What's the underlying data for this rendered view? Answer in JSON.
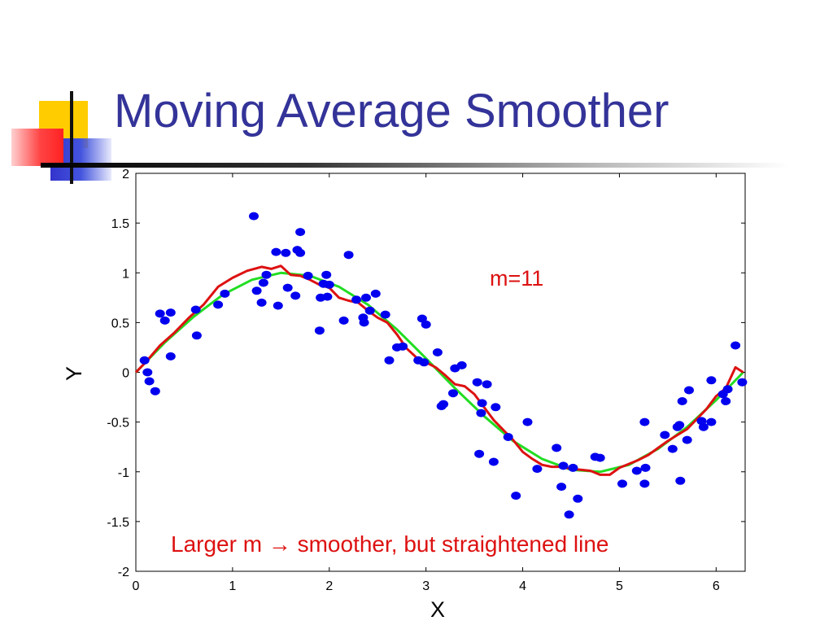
{
  "slide": {
    "title": "Moving Average Smoother"
  },
  "colors": {
    "title": "#333399",
    "points": "#0000ee",
    "true_curve": "#22dd22",
    "smoothed_curve": "#dd1111",
    "annotation": "#dd1111"
  },
  "chart_data": {
    "type": "scatter",
    "xlabel": "X",
    "ylabel": "Y",
    "xlim": [
      0,
      6.3
    ],
    "ylim": [
      -2,
      2
    ],
    "xticks": [
      0,
      1,
      2,
      3,
      4,
      5,
      6
    ],
    "yticks": [
      -2,
      -1.5,
      -1,
      -0.5,
      0,
      0.5,
      1,
      1.5,
      2
    ],
    "xtick_labels": [
      "0",
      "1",
      "2",
      "3",
      "4",
      "5",
      "6"
    ],
    "ytick_labels": [
      "-2",
      "-1.5",
      "-1",
      "-0.5",
      "0",
      "0.5",
      "1",
      "1.5",
      "2"
    ],
    "grid": false,
    "annotations": {
      "m_label": "m=11",
      "note": "Larger m → smoother, but straightened line"
    },
    "points": [
      [
        0.09,
        0.12
      ],
      [
        0.12,
        0.0
      ],
      [
        0.14,
        -0.09
      ],
      [
        0.2,
        -0.19
      ],
      [
        0.25,
        0.59
      ],
      [
        0.3,
        0.52
      ],
      [
        0.36,
        0.6
      ],
      [
        0.36,
        0.16
      ],
      [
        0.62,
        0.63
      ],
      [
        0.63,
        0.37
      ],
      [
        0.85,
        0.68
      ],
      [
        0.92,
        0.79
      ],
      [
        1.22,
        1.57
      ],
      [
        1.25,
        0.82
      ],
      [
        1.3,
        0.7
      ],
      [
        1.32,
        0.9
      ],
      [
        1.35,
        0.98
      ],
      [
        1.45,
        1.21
      ],
      [
        1.47,
        0.67
      ],
      [
        1.55,
        1.2
      ],
      [
        1.57,
        0.85
      ],
      [
        1.65,
        0.77
      ],
      [
        1.67,
        1.23
      ],
      [
        1.7,
        1.2
      ],
      [
        1.7,
        1.41
      ],
      [
        1.78,
        0.97
      ],
      [
        1.9,
        0.42
      ],
      [
        1.91,
        0.75
      ],
      [
        1.94,
        0.89
      ],
      [
        1.97,
        0.98
      ],
      [
        1.98,
        0.76
      ],
      [
        2.0,
        0.88
      ],
      [
        2.15,
        0.52
      ],
      [
        2.2,
        1.18
      ],
      [
        2.28,
        0.73
      ],
      [
        2.35,
        0.55
      ],
      [
        2.36,
        0.5
      ],
      [
        2.38,
        0.75
      ],
      [
        2.42,
        0.62
      ],
      [
        2.48,
        0.79
      ],
      [
        2.58,
        0.58
      ],
      [
        2.62,
        0.12
      ],
      [
        2.7,
        0.25
      ],
      [
        2.76,
        0.26
      ],
      [
        2.92,
        0.12
      ],
      [
        2.96,
        0.54
      ],
      [
        2.98,
        0.1
      ],
      [
        3.0,
        0.48
      ],
      [
        3.12,
        0.2
      ],
      [
        3.16,
        -0.34
      ],
      [
        3.18,
        -0.32
      ],
      [
        3.28,
        -0.21
      ],
      [
        3.3,
        0.04
      ],
      [
        3.37,
        0.07
      ],
      [
        3.53,
        -0.1
      ],
      [
        3.55,
        -0.82
      ],
      [
        3.57,
        -0.41
      ],
      [
        3.58,
        -0.31
      ],
      [
        3.63,
        -0.12
      ],
      [
        3.7,
        -0.9
      ],
      [
        3.72,
        -0.35
      ],
      [
        3.85,
        -0.65
      ],
      [
        3.93,
        -1.24
      ],
      [
        4.05,
        -0.5
      ],
      [
        4.15,
        -0.97
      ],
      [
        4.35,
        -0.76
      ],
      [
        4.4,
        -1.15
      ],
      [
        4.42,
        -0.94
      ],
      [
        4.48,
        -1.43
      ],
      [
        4.52,
        -0.96
      ],
      [
        4.57,
        -1.27
      ],
      [
        4.75,
        -0.85
      ],
      [
        4.8,
        -0.86
      ],
      [
        5.03,
        -1.12
      ],
      [
        5.18,
        -0.99
      ],
      [
        5.26,
        -1.12
      ],
      [
        5.26,
        -0.5
      ],
      [
        5.27,
        -0.96
      ],
      [
        5.47,
        -0.63
      ],
      [
        5.55,
        -0.77
      ],
      [
        5.6,
        -0.55
      ],
      [
        5.62,
        -0.53
      ],
      [
        5.63,
        -1.09
      ],
      [
        5.65,
        -0.29
      ],
      [
        5.7,
        -0.68
      ],
      [
        5.72,
        -0.18
      ],
      [
        5.85,
        -0.49
      ],
      [
        5.87,
        -0.55
      ],
      [
        5.95,
        -0.5
      ],
      [
        5.95,
        -0.08
      ],
      [
        6.07,
        -0.22
      ],
      [
        6.1,
        -0.29
      ],
      [
        6.12,
        -0.17
      ],
      [
        6.2,
        0.27
      ],
      [
        6.27,
        -0.1
      ]
    ],
    "series": [
      {
        "type": "line",
        "x": [
          0.0,
          0.3,
          0.6,
          0.9,
          1.2,
          1.5,
          1.8,
          2.1,
          2.4,
          2.7,
          3.0,
          3.3,
          3.6,
          3.9,
          4.2,
          4.5,
          4.8,
          5.1,
          5.4,
          5.7,
          6.0,
          6.28
        ],
        "values": [
          0.0,
          0.3,
          0.56,
          0.78,
          0.93,
          1.0,
          0.97,
          0.86,
          0.68,
          0.43,
          0.14,
          -0.16,
          -0.44,
          -0.69,
          -0.87,
          -0.98,
          -1.0,
          -0.93,
          -0.77,
          -0.55,
          -0.28,
          0.0
        ]
      },
      {
        "type": "line",
        "x": [
          0.0,
          0.1,
          0.25,
          0.4,
          0.55,
          0.7,
          0.85,
          1.0,
          1.15,
          1.3,
          1.4,
          1.5,
          1.6,
          1.7,
          1.8,
          1.9,
          2.0,
          2.1,
          2.2,
          2.3,
          2.4,
          2.5,
          2.6,
          2.7,
          2.8,
          2.9,
          3.0,
          3.1,
          3.2,
          3.3,
          3.4,
          3.5,
          3.6,
          3.7,
          3.8,
          3.9,
          4.0,
          4.1,
          4.2,
          4.3,
          4.4,
          4.5,
          4.6,
          4.7,
          4.8,
          4.9,
          5.0,
          5.1,
          5.2,
          5.3,
          5.4,
          5.5,
          5.6,
          5.7,
          5.8,
          5.9,
          6.0,
          6.1,
          6.2,
          6.28
        ],
        "values": [
          0.0,
          0.1,
          0.27,
          0.4,
          0.55,
          0.68,
          0.86,
          0.95,
          1.02,
          1.06,
          1.04,
          1.07,
          0.98,
          0.97,
          0.93,
          0.88,
          0.85,
          0.75,
          0.72,
          0.7,
          0.62,
          0.55,
          0.5,
          0.38,
          0.24,
          0.15,
          0.1,
          0.05,
          -0.03,
          -0.12,
          -0.14,
          -0.22,
          -0.35,
          -0.48,
          -0.58,
          -0.68,
          -0.8,
          -0.87,
          -0.93,
          -0.95,
          -0.95,
          -0.97,
          -0.98,
          -0.99,
          -1.03,
          -1.03,
          -0.96,
          -0.92,
          -0.88,
          -0.83,
          -0.76,
          -0.69,
          -0.63,
          -0.57,
          -0.47,
          -0.37,
          -0.24,
          -0.16,
          0.05,
          0.0
        ]
      }
    ]
  }
}
